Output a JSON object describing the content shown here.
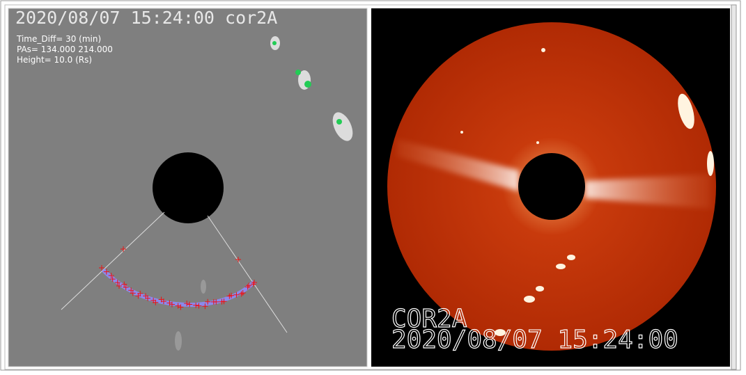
{
  "left_panel": {
    "title": "2020/08/07 15:24:00 cor2A",
    "info": [
      "Time_Diff= 30 (min)",
      "PAs=  134.000 214.000",
      "Height=  10.0 (Rs)"
    ]
  },
  "right_panel": {
    "instrument": "COR2A",
    "timestamp": "2020/08/07 15:24:00"
  }
}
